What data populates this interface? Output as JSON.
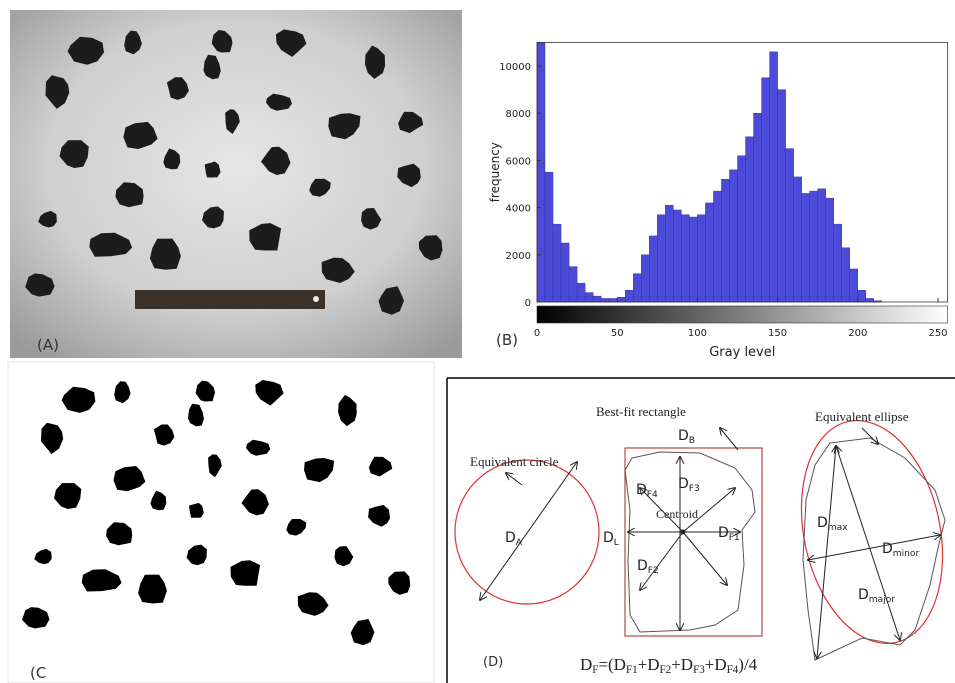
{
  "panels": {
    "a_label": "(A)",
    "b_label": "(B)",
    "c_label": "(C",
    "d_label": "(D)"
  },
  "chart_data": {
    "type": "histogram",
    "x_label": "Gray level",
    "y_label": "frequency",
    "bins": [
      0,
      5,
      10,
      15,
      20,
      25,
      30,
      35,
      40,
      45,
      50,
      55,
      60,
      65,
      70,
      75,
      80,
      85,
      90,
      95,
      100,
      105,
      110,
      115,
      120,
      125,
      130,
      135,
      140,
      145,
      150,
      155,
      160,
      165,
      170,
      175,
      180,
      185,
      190,
      195,
      200,
      205,
      210,
      215,
      220,
      225,
      230,
      235,
      240,
      245,
      250,
      255
    ],
    "values": [
      11000,
      5500,
      3300,
      2500,
      1500,
      800,
      400,
      250,
      150,
      150,
      200,
      500,
      1200,
      2000,
      2800,
      3700,
      4100,
      3900,
      3700,
      3600,
      3700,
      4200,
      4700,
      5200,
      5600,
      6200,
      7000,
      8000,
      9500,
      10600,
      9000,
      6500,
      5300,
      4600,
      4700,
      4800,
      4400,
      3300,
      2300,
      1400,
      500,
      150,
      50,
      0,
      0,
      0,
      0,
      0,
      0,
      0,
      0
    ],
    "color": "#4b4bd8",
    "xlim": [
      0,
      256
    ],
    "xticks": [
      0,
      50,
      100,
      150,
      200,
      250
    ],
    "ylim": [
      0,
      11000
    ],
    "yticks": [
      0,
      2000,
      4000,
      6000,
      8000,
      10000
    ]
  },
  "diagram": {
    "circle_label": "Equivalent circle",
    "rect_label": "Best-fit rectangle",
    "ellipse_label": "Equivalent ellipse",
    "centroid": "Centroid",
    "d_a": {
      "text": "D",
      "sub": "A"
    },
    "d_b": {
      "text": "D",
      "sub": "B"
    },
    "d_l": {
      "text": "D",
      "sub": "L"
    },
    "d_f1": {
      "text": "D",
      "sub": "F1"
    },
    "d_f2": {
      "text": "D",
      "sub": "F2"
    },
    "d_f3": {
      "text": "D",
      "sub": "F3"
    },
    "d_f4": {
      "text": "D",
      "sub": "F4"
    },
    "d_max": {
      "text": "D",
      "sub": "max"
    },
    "d_minor": {
      "text": "D",
      "sub": "minor"
    },
    "d_major": {
      "text": "D",
      "sub": "major"
    },
    "formula": [
      {
        "text": "D",
        "sub": "F"
      },
      {
        "text": "=(D",
        "sub": "F1"
      },
      {
        "text": "+D",
        "sub": "F2"
      },
      {
        "text": "+D",
        "sub": "F3"
      },
      {
        "text": "+D",
        "sub": "F4"
      },
      {
        "text": ")/4"
      }
    ]
  }
}
